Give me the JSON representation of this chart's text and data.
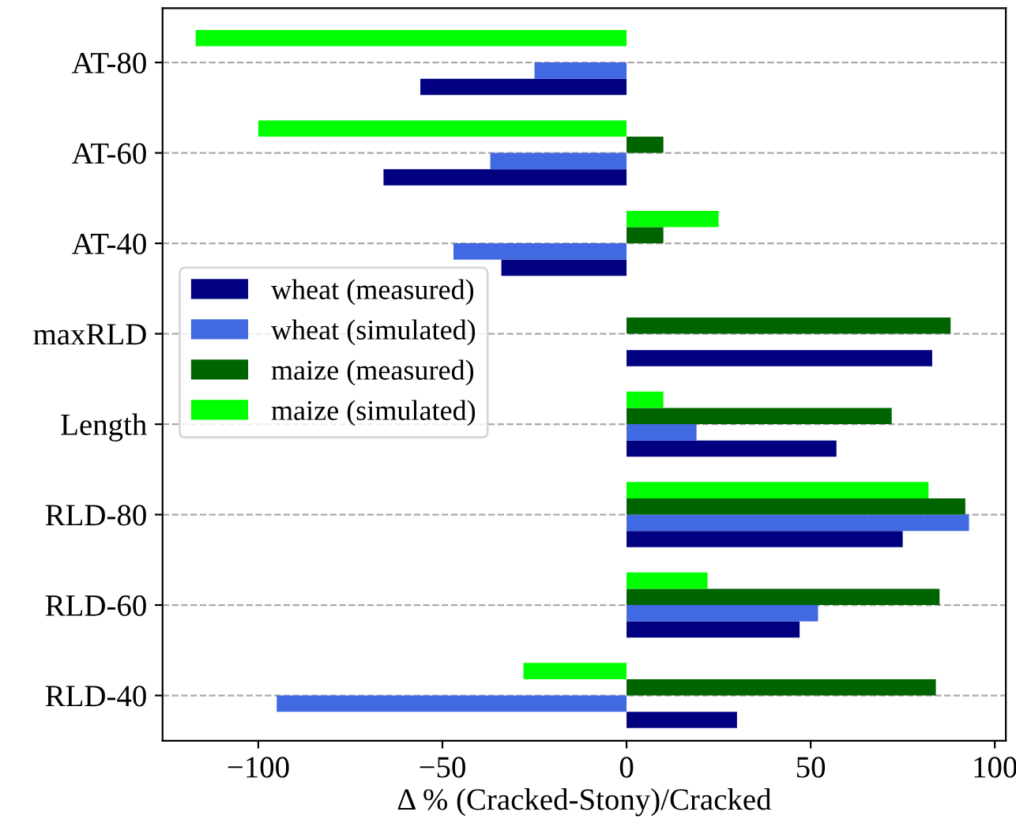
{
  "chart_data": {
    "type": "bar",
    "orientation": "horizontal",
    "xlabel": "Δ % (Cracked-Stony)/Cracked",
    "categories": [
      "AT-80",
      "AT-60",
      "AT-40",
      "maxRLD",
      "Length",
      "RLD-80",
      "RLD-60",
      "RLD-40"
    ],
    "series": [
      {
        "name": "wheat (measured)",
        "color": "#000080",
        "values": [
          -56,
          -66,
          -34,
          83,
          57,
          75,
          47,
          30
        ]
      },
      {
        "name": "wheat (simulated)",
        "color": "#4169e1",
        "values": [
          -25,
          -37,
          -47,
          null,
          19,
          93,
          52,
          -95
        ]
      },
      {
        "name": "maize (measured)",
        "color": "#006400",
        "values": [
          null,
          10,
          10,
          88,
          72,
          92,
          85,
          84
        ]
      },
      {
        "name": "maize (simulated)",
        "color": "#00ff00",
        "values": [
          -117,
          -100,
          25,
          null,
          10,
          82,
          22,
          -28
        ]
      }
    ],
    "xlim": [
      -126,
      103
    ],
    "xticks": [
      -100,
      -50,
      0,
      50,
      100
    ],
    "grid": "y",
    "legend": "left"
  }
}
